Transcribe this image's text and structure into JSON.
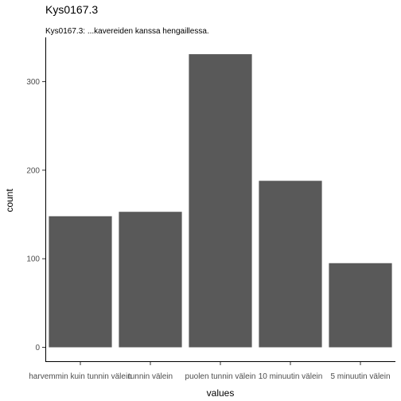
{
  "chart_data": {
    "type": "bar",
    "title": "Kys0167.3",
    "subtitle": "Kys0167.3: ...kavereiden kanssa hengaillessa.",
    "xlabel": "values",
    "ylabel": "count",
    "categories": [
      "harvemmin kuin tunnin välein",
      "tunnin välein",
      "puolen tunnin välein",
      "10 minuutin välein",
      "5 minuutin välein"
    ],
    "values": [
      148,
      153,
      331,
      188,
      95
    ],
    "ylim": [
      0,
      331
    ],
    "yticks": [
      0,
      100,
      200,
      300
    ],
    "bar_color": "#595959",
    "grid": false
  }
}
